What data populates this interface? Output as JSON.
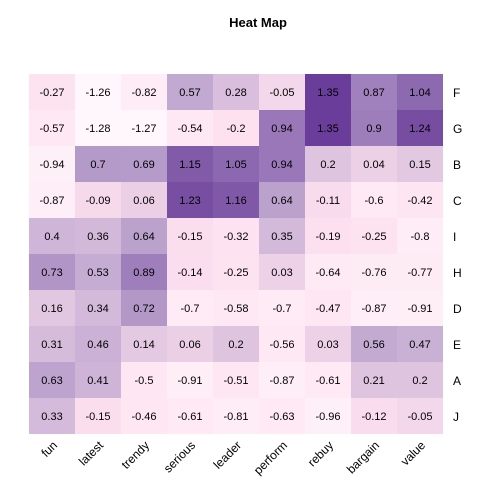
{
  "chart_data": {
    "type": "heatmap",
    "title": "Heat Map",
    "xlabel": "",
    "ylabel": "",
    "x_categories": [
      "fun",
      "latest",
      "trendy",
      "serious",
      "leader",
      "perform",
      "rebuy",
      "bargain",
      "value"
    ],
    "y_categories": [
      "F",
      "G",
      "B",
      "C",
      "I",
      "H",
      "D",
      "E",
      "A",
      "J"
    ],
    "values": [
      [
        -0.27,
        -1.26,
        -0.82,
        0.57,
        0.28,
        -0.05,
        1.35,
        0.87,
        1.04
      ],
      [
        -0.57,
        -1.28,
        -1.27,
        -0.54,
        -0.2,
        0.94,
        1.35,
        0.9,
        1.24
      ],
      [
        -0.94,
        0.7,
        0.69,
        1.15,
        1.05,
        0.94,
        0.2,
        0.04,
        0.15
      ],
      [
        -0.87,
        -0.09,
        0.06,
        1.23,
        1.16,
        0.64,
        -0.11,
        -0.6,
        -0.42
      ],
      [
        0.4,
        0.36,
        0.64,
        -0.15,
        -0.32,
        0.35,
        -0.19,
        -0.25,
        -0.8
      ],
      [
        0.73,
        0.53,
        0.89,
        -0.14,
        -0.25,
        0.03,
        -0.64,
        -0.76,
        -0.77
      ],
      [
        0.16,
        0.34,
        0.72,
        -0.7,
        -0.58,
        -0.7,
        -0.47,
        -0.87,
        -0.91
      ],
      [
        0.31,
        0.46,
        0.14,
        0.06,
        0.2,
        -0.56,
        0.03,
        0.56,
        0.47
      ],
      [
        0.63,
        0.41,
        -0.5,
        -0.91,
        -0.51,
        -0.87,
        -0.61,
        0.21,
        0.2
      ],
      [
        0.33,
        -0.15,
        -0.46,
        -0.61,
        -0.81,
        -0.63,
        -0.96,
        -0.12,
        -0.05
      ]
    ],
    "value_range": [
      -1.28,
      1.35
    ],
    "colors": {
      "low": "#fff7fb",
      "mid_low": "#fde0ef",
      "mid_high": "#bea6cf",
      "high": "#6a3d9a"
    },
    "grid": false,
    "legend": "none"
  }
}
